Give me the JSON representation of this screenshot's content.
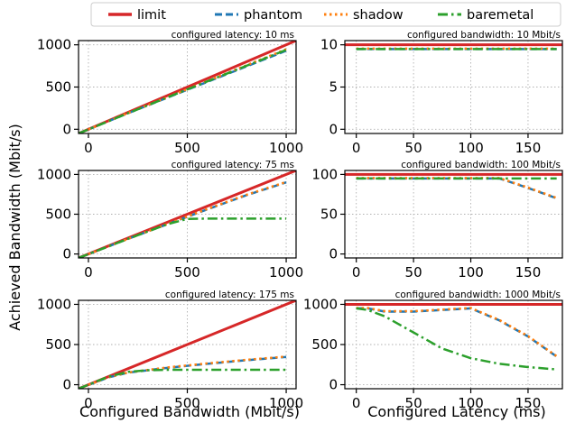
{
  "figure": {
    "xlabel_left": "Configured Bandwidth (Mbit/s)",
    "xlabel_right": "Configured Latency (ms)",
    "ylabel": "Achieved Bandwidth (Mbit/s)",
    "legend_position": "top-center"
  },
  "colors": {
    "limit": "#d62728",
    "phantom": "#1f77b4",
    "shadow": "#ff7f0e",
    "baremetal": "#2ca02c",
    "grid": "#b0b0b0"
  },
  "chart_data": [
    {
      "id": "lat10",
      "type": "line",
      "title": "configured latency: 10 ms",
      "xlim": [
        -50,
        1050
      ],
      "ylim": [
        -50,
        1050
      ],
      "grid": true,
      "xticks": [
        0,
        500,
        1000
      ],
      "yticks": [
        0,
        500,
        1000
      ],
      "series": [
        {
          "name": "limit",
          "x": [
            -50,
            1050
          ],
          "y": [
            -50,
            1050
          ]
        },
        {
          "name": "phantom",
          "x": [
            -50,
            200,
            400,
            600,
            800,
            1000
          ],
          "y": [
            -50,
            190,
            375,
            560,
            745,
            930
          ]
        },
        {
          "name": "shadow",
          "x": [
            -50,
            200,
            400,
            600,
            800,
            1000
          ],
          "y": [
            -50,
            192,
            380,
            570,
            758,
            948
          ]
        },
        {
          "name": "baremetal",
          "x": [
            -50,
            200,
            400,
            600,
            800,
            1000
          ],
          "y": [
            -50,
            190,
            378,
            566,
            752,
            940
          ]
        }
      ]
    },
    {
      "id": "bw10",
      "type": "line",
      "title": "configured bandwidth: 10 Mbit/s",
      "xlim": [
        -10,
        180
      ],
      "ylim": [
        -0.5,
        10.5
      ],
      "grid": true,
      "xticks": [
        0,
        50,
        100,
        150
      ],
      "yticks": [
        0,
        5,
        10
      ],
      "series": [
        {
          "name": "limit",
          "x": [
            -10,
            180
          ],
          "y": [
            10,
            10
          ]
        },
        {
          "name": "phantom",
          "x": [
            0,
            175
          ],
          "y": [
            9.5,
            9.5
          ]
        },
        {
          "name": "shadow",
          "x": [
            0,
            175
          ],
          "y": [
            9.55,
            9.55
          ]
        },
        {
          "name": "baremetal",
          "x": [
            0,
            175
          ],
          "y": [
            9.5,
            9.5
          ]
        }
      ]
    },
    {
      "id": "lat75",
      "type": "line",
      "title": "configured latency: 75 ms",
      "xlim": [
        -50,
        1050
      ],
      "ylim": [
        -50,
        1050
      ],
      "grid": true,
      "xticks": [
        0,
        500,
        1000
      ],
      "yticks": [
        0,
        500,
        1000
      ],
      "series": [
        {
          "name": "limit",
          "x": [
            -50,
            1050
          ],
          "y": [
            -50,
            1050
          ]
        },
        {
          "name": "phantom",
          "x": [
            -50,
            200,
            400,
            600,
            800,
            1000
          ],
          "y": [
            -50,
            190,
            375,
            560,
            740,
            900
          ]
        },
        {
          "name": "shadow",
          "x": [
            -50,
            200,
            400,
            600,
            800,
            1000
          ],
          "y": [
            -50,
            190,
            378,
            565,
            745,
            905
          ]
        },
        {
          "name": "baremetal",
          "x": [
            -50,
            200,
            400,
            500,
            600,
            800,
            1000
          ],
          "y": [
            -50,
            190,
            375,
            440,
            445,
            445,
            445
          ]
        }
      ]
    },
    {
      "id": "bw100",
      "type": "line",
      "title": "configured bandwidth: 100 Mbit/s",
      "xlim": [
        -10,
        180
      ],
      "ylim": [
        -5,
        105
      ],
      "grid": true,
      "xticks": [
        0,
        50,
        100,
        150
      ],
      "yticks": [
        0,
        50,
        100
      ],
      "series": [
        {
          "name": "limit",
          "x": [
            -10,
            180
          ],
          "y": [
            100,
            100
          ]
        },
        {
          "name": "phantom",
          "x": [
            0,
            125,
            150,
            175
          ],
          "y": [
            95,
            95,
            83,
            70
          ]
        },
        {
          "name": "shadow",
          "x": [
            0,
            125,
            150,
            175
          ],
          "y": [
            95.5,
            95.5,
            83.5,
            70.5
          ]
        },
        {
          "name": "baremetal",
          "x": [
            0,
            175
          ],
          "y": [
            95,
            95
          ]
        }
      ]
    },
    {
      "id": "lat175",
      "type": "line",
      "title": "configured latency: 175 ms",
      "xlim": [
        -50,
        1050
      ],
      "ylim": [
        -50,
        1050
      ],
      "grid": true,
      "xticks": [
        0,
        500,
        1000
      ],
      "yticks": [
        0,
        500,
        1000
      ],
      "series": [
        {
          "name": "limit",
          "x": [
            -50,
            1050
          ],
          "y": [
            -50,
            1050
          ]
        },
        {
          "name": "phantom",
          "x": [
            -50,
            100,
            200,
            400,
            600,
            800,
            1000
          ],
          "y": [
            -50,
            90,
            150,
            210,
            260,
            305,
            345
          ]
        },
        {
          "name": "shadow",
          "x": [
            -50,
            100,
            200,
            400,
            600,
            800,
            1000
          ],
          "y": [
            -50,
            92,
            152,
            215,
            265,
            310,
            350
          ]
        },
        {
          "name": "baremetal",
          "x": [
            -50,
            100,
            200,
            300,
            400,
            1000
          ],
          "y": [
            -50,
            100,
            160,
            180,
            185,
            185
          ]
        }
      ]
    },
    {
      "id": "bw1000",
      "type": "line",
      "title": "configured bandwidth: 1000 Mbit/s",
      "xlim": [
        -10,
        180
      ],
      "ylim": [
        -50,
        1050
      ],
      "grid": true,
      "xticks": [
        0,
        50,
        100,
        150
      ],
      "yticks": [
        0,
        500,
        1000
      ],
      "series": [
        {
          "name": "limit",
          "x": [
            -10,
            180
          ],
          "y": [
            1000,
            1000
          ]
        },
        {
          "name": "phantom",
          "x": [
            0,
            10,
            25,
            50,
            75,
            100,
            125,
            150,
            175
          ],
          "y": [
            950,
            950,
            910,
            910,
            930,
            950,
            800,
            600,
            350
          ]
        },
        {
          "name": "shadow",
          "x": [
            0,
            10,
            25,
            50,
            75,
            100,
            125,
            150,
            175
          ],
          "y": [
            955,
            955,
            915,
            915,
            935,
            955,
            805,
            605,
            355
          ]
        },
        {
          "name": "baremetal",
          "x": [
            0,
            10,
            25,
            50,
            75,
            100,
            125,
            150,
            175
          ],
          "y": [
            950,
            930,
            850,
            650,
            450,
            330,
            260,
            220,
            190
          ]
        }
      ]
    }
  ]
}
